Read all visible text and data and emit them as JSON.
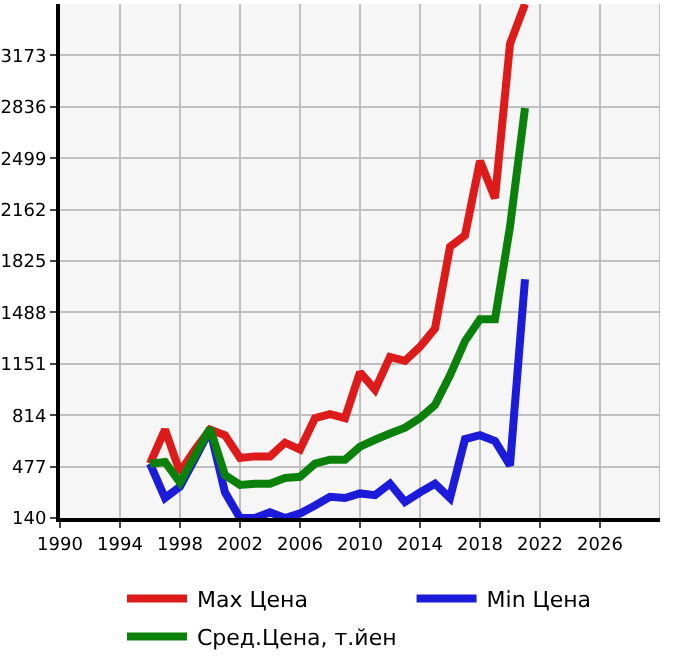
{
  "chart_data": {
    "type": "line",
    "x": [
      1996,
      1997,
      1998,
      1999,
      2000,
      2001,
      2002,
      2003,
      2004,
      2005,
      2006,
      2007,
      2008,
      2009,
      2010,
      2011,
      2012,
      2013,
      2014,
      2015,
      2016,
      2017,
      2018,
      2019,
      2020,
      2021
    ],
    "series": [
      {
        "name": "Max Цена",
        "color": "#dd1b1b",
        "values": [
          496,
          720,
          440,
          589,
          720,
          683,
          533,
          544,
          544,
          634,
          589,
          795,
          821,
          795,
          1095,
          982,
          1196,
          1170,
          1263,
          1383,
          1918,
          1993,
          2480,
          2237,
          3248,
          3510
        ]
      },
      {
        "name": "Min Цена",
        "color": "#1b1bd9",
        "values": [
          496,
          271,
          346,
          530,
          720,
          308,
          140,
          140,
          177,
          140,
          170,
          222,
          279,
          271,
          301,
          290,
          365,
          245,
          308,
          365,
          271,
          657,
          683,
          645,
          484,
          1705
        ]
      },
      {
        "name": "Сред.Цена, т.йен",
        "color": "#0b800b",
        "values": [
          496,
          507,
          372,
          550,
          728,
          421,
          357,
          365,
          365,
          402,
          410,
          496,
          522,
          522,
          608,
          653,
          694,
          732,
          795,
          881,
          1076,
          1300,
          1443,
          1443,
          2050,
          2828
        ]
      }
    ],
    "xlim": [
      1990,
      2030
    ],
    "xticks": [
      1990,
      1994,
      1998,
      2002,
      2006,
      2010,
      2014,
      2018,
      2022,
      2026
    ],
    "ylim": [
      140,
      3510
    ],
    "yticks": [
      140,
      477,
      814,
      1151,
      1488,
      1825,
      2162,
      2499,
      2836,
      3173
    ],
    "grid": true,
    "legend": "bottom",
    "marker": "none",
    "line_style": "solid"
  }
}
